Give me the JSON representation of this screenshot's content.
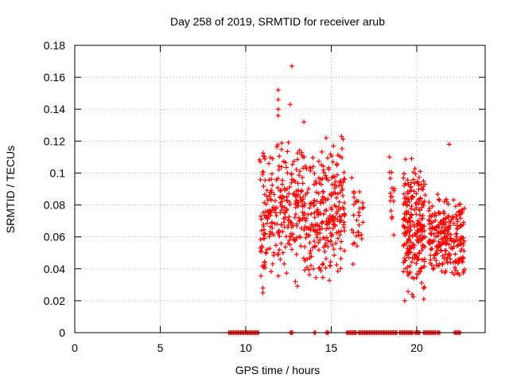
{
  "chart_data": {
    "type": "scatter",
    "title": "Day 258 of 2019, SRMTID for receiver arub",
    "xlabel": "GPS time / hours",
    "ylabel": "SRMTID / TECUs",
    "xlim": [
      0,
      24
    ],
    "ylim": [
      0,
      0.18
    ],
    "grid": true,
    "marker": "+",
    "color": "#ff0000",
    "xticks": [
      0,
      5,
      10,
      15,
      20
    ],
    "xtick_labels": [
      "0",
      "5",
      "10",
      "15",
      "20"
    ],
    "yticks": [
      0,
      0.02,
      0.04,
      0.06,
      0.08,
      0.1,
      0.12,
      0.14,
      0.16,
      0.18
    ],
    "ytick_labels": [
      "0",
      "0.02",
      "0.04",
      "0.06",
      "0.08",
      "0.1",
      "0.12",
      "0.14",
      "0.16",
      "0.18"
    ],
    "series": [
      {
        "name": "SRMTID",
        "clusters": [
          {
            "x_range": [
              10.8,
              15.8
            ],
            "y_range": [
              0.025,
              0.123
            ],
            "count": 520
          },
          {
            "x_range": [
              16.2,
              16.9
            ],
            "y_range": [
              0.04,
              0.097
            ],
            "count": 30
          },
          {
            "x_range": [
              18.4,
              18.7
            ],
            "y_range": [
              0.06,
              0.11
            ],
            "count": 15
          },
          {
            "x_range": [
              19.2,
              20.5
            ],
            "y_range": [
              0.02,
              0.11
            ],
            "count": 230
          },
          {
            "x_range": [
              20.7,
              22.8
            ],
            "y_range": [
              0.03,
              0.09
            ],
            "count": 240
          }
        ],
        "points": [
          [
            12.7,
            0.167
          ],
          [
            11.9,
            0.152
          ],
          [
            11.9,
            0.146
          ],
          [
            12.6,
            0.143
          ],
          [
            11.9,
            0.14
          ],
          [
            11.9,
            0.136
          ],
          [
            13.4,
            0.132
          ],
          [
            15.6,
            0.123
          ],
          [
            14.7,
            0.122
          ],
          [
            21.9,
            0.118
          ],
          [
            18.4,
            0.11
          ],
          [
            19.7,
            0.109
          ],
          [
            20.2,
            0.101
          ],
          [
            16.2,
            0.097
          ],
          [
            11.0,
            0.028
          ],
          [
            11.0,
            0.025
          ],
          [
            19.3,
            0.02
          ],
          [
            12.9,
            0.032
          ]
        ],
        "zero_segments": [
          [
            9.0,
            10.8
          ],
          [
            12.6,
            12.8
          ],
          [
            14.0,
            14.1
          ],
          [
            14.7,
            14.9
          ],
          [
            15.9,
            16.5
          ],
          [
            16.6,
            18.9
          ],
          [
            19.0,
            19.8
          ],
          [
            19.9,
            20.2
          ],
          [
            20.4,
            21.1
          ],
          [
            21.2,
            21.4
          ],
          [
            22.2,
            22.6
          ]
        ]
      }
    ]
  }
}
